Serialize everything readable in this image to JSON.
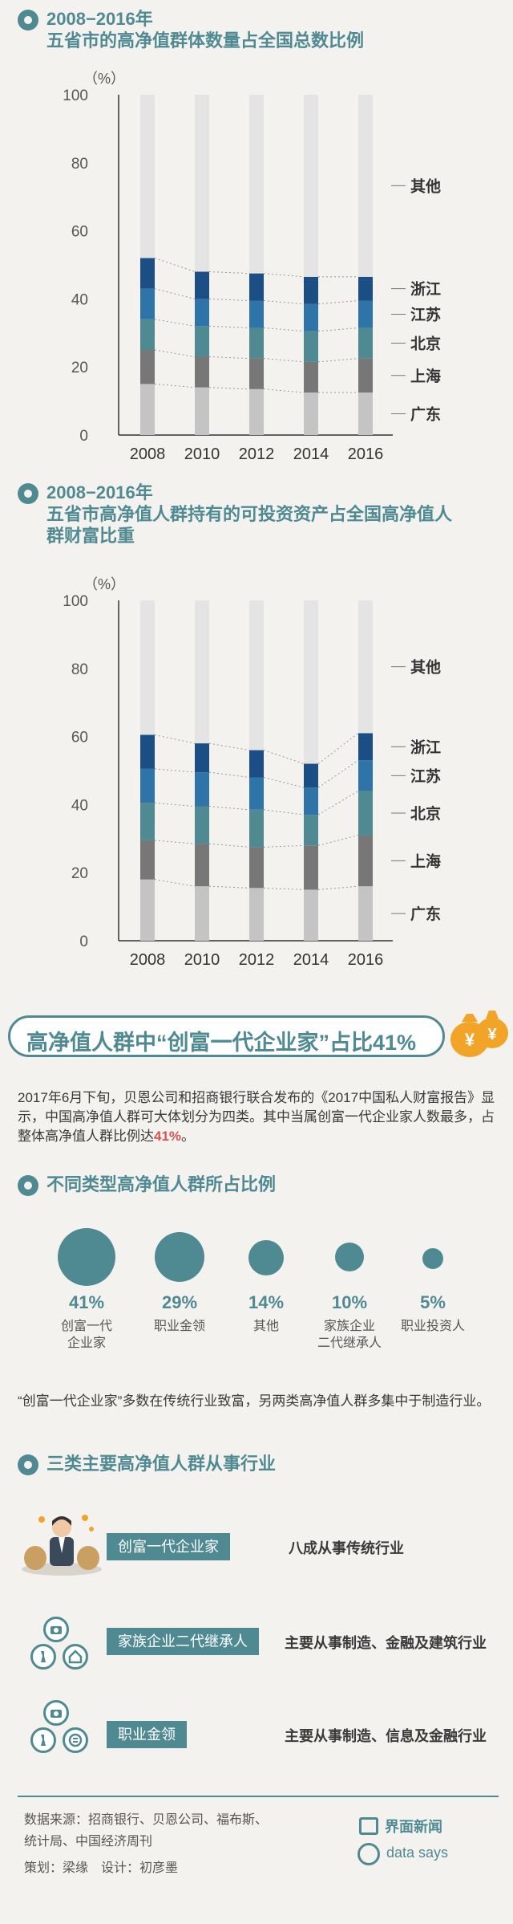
{
  "colors": {
    "teal": "#4f8a93",
    "red": "#d9534f"
  },
  "section1": {
    "year": "2008−2016年",
    "title": "五省市的高净值群体数量占全国总数比例"
  },
  "section2": {
    "year": "2008−2016年",
    "title_line1": "五省市高净值人群持有的可投资资产占全国高净值人",
    "title_line2": "群财富比重"
  },
  "chart_data": [
    {
      "type": "bar",
      "stacked": true,
      "ylabel": "（%）",
      "ylim": [
        0,
        100
      ],
      "yticks": [
        0,
        20,
        40,
        60,
        80,
        100
      ],
      "categories": [
        "2008",
        "2010",
        "2012",
        "2014",
        "2016"
      ],
      "series": [
        {
          "name": "广东",
          "color": "#c4c4c4",
          "values": [
            15,
            14,
            13.5,
            12.5,
            12.5
          ]
        },
        {
          "name": "上海",
          "color": "#777777",
          "values": [
            10,
            9,
            9,
            9,
            10
          ]
        },
        {
          "name": "北京",
          "color": "#4f8a93",
          "values": [
            9,
            9,
            9,
            9,
            9
          ]
        },
        {
          "name": "江苏",
          "color": "#2f74a8",
          "values": [
            9,
            8,
            8,
            8,
            8
          ]
        },
        {
          "name": "浙江",
          "color": "#1c4e86",
          "values": [
            9,
            8,
            8,
            8,
            7
          ]
        },
        {
          "name": "其他",
          "color": "#e4e4e4",
          "values": [
            48,
            52,
            52.5,
            53.5,
            53.5
          ]
        }
      ]
    },
    {
      "type": "bar",
      "stacked": true,
      "ylabel": "（%）",
      "ylim": [
        0,
        100
      ],
      "yticks": [
        0,
        20,
        40,
        60,
        80,
        100
      ],
      "categories": [
        "2008",
        "2010",
        "2012",
        "2014",
        "2016"
      ],
      "series": [
        {
          "name": "广东",
          "color": "#c4c4c4",
          "values": [
            18,
            16,
            15.5,
            15,
            16
          ]
        },
        {
          "name": "上海",
          "color": "#777777",
          "values": [
            11.5,
            12.5,
            12,
            13,
            15
          ]
        },
        {
          "name": "北京",
          "color": "#4f8a93",
          "values": [
            11,
            11,
            11,
            9,
            13
          ]
        },
        {
          "name": "江苏",
          "color": "#2f74a8",
          "values": [
            10,
            10,
            9.5,
            8,
            9
          ]
        },
        {
          "name": "浙江",
          "color": "#1c4e86",
          "values": [
            10,
            8.5,
            8,
            7,
            8
          ]
        },
        {
          "name": "其他",
          "color": "#e4e4e4",
          "values": [
            39.5,
            42,
            44,
            48,
            39
          ]
        }
      ]
    }
  ],
  "banner": {
    "text": "高净值人群中“创富一代企业家”占比41%"
  },
  "intro": {
    "text1": "2017年6月下旬，贝恩公司和招商银行联合发布的《2017中国私人财富报告》显示，中国高净值人群可大体划分为四类。其中当属创富一代企业家人数最多，占整体高净值人群比例达",
    "hl": "41%",
    "text2": "。"
  },
  "section3": {
    "title": "不同类型高净值人群所占比例"
  },
  "groups": [
    {
      "pct": "41%",
      "label": "创富一代\n企业家",
      "share": 41
    },
    {
      "pct": "29%",
      "label": "职业金领",
      "share": 29
    },
    {
      "pct": "14%",
      "label": "其他",
      "share": 14
    },
    {
      "pct": "10%",
      "label": "家族企业\n二代继承人",
      "share": 10
    },
    {
      "pct": "5%",
      "label": "职业投资人",
      "share": 5
    }
  ],
  "note": {
    "text": "“创富一代企业家”多数在传统行业致富，另两类高净值人群多集中于制造行业。"
  },
  "section4": {
    "title": "三类主要高净值人群从事行业"
  },
  "industries": [
    {
      "tag": "创富一代企业家",
      "desc": "八成从事传统行业"
    },
    {
      "tag": "家族企业二代继承人",
      "desc": "主要从事制造、金融及建筑行业"
    },
    {
      "tag": "职业金领",
      "desc": "主要从事制造、信息及金融行业"
    }
  ],
  "footer": {
    "source_line1": "数据来源：招商银行、贝恩公司、福布斯、",
    "source_line2": "统计局、中国经济周刊",
    "credits": "策划：梁缘　设计：初彦墨",
    "brand1": "界面新闻",
    "brand2": "data says"
  }
}
